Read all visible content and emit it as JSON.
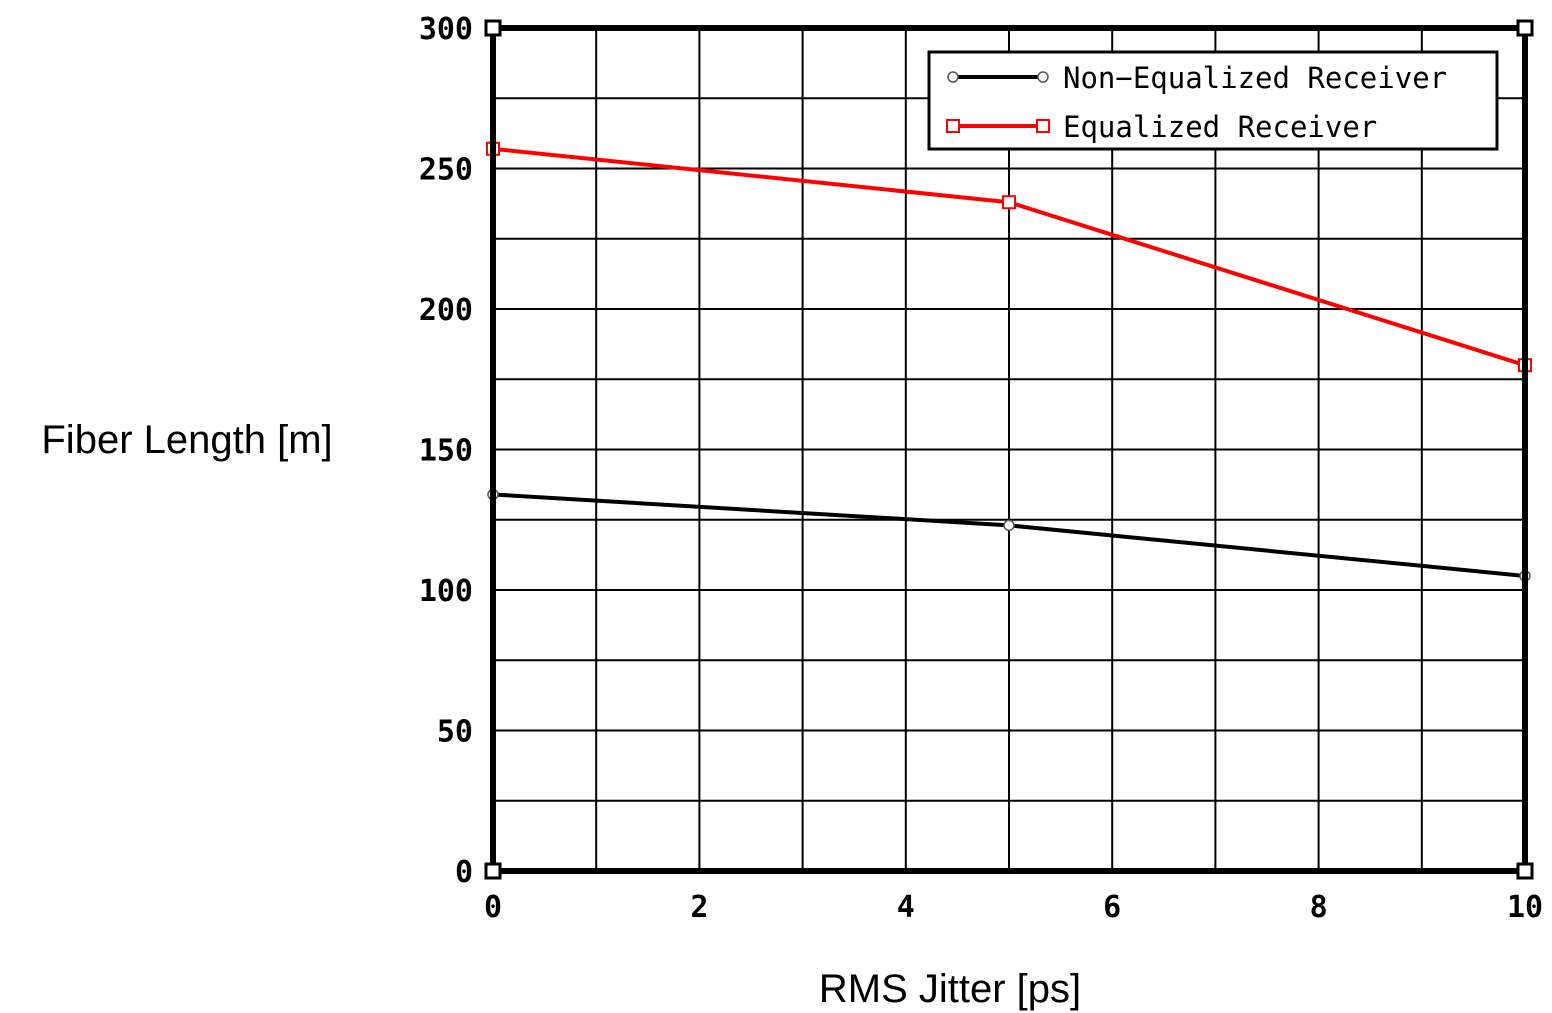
{
  "chart_data": {
    "type": "line",
    "title": "",
    "xlabel": "RMS Jitter [ps]",
    "ylabel": "Fiber Length [m]",
    "xlim": [
      0,
      10
    ],
    "ylim": [
      0,
      300
    ],
    "x_ticks": [
      0,
      2,
      4,
      6,
      8,
      10
    ],
    "y_ticks": [
      0,
      50,
      100,
      150,
      200,
      250,
      300
    ],
    "x_tick_labels": [
      "0",
      "2",
      "4",
      "6",
      "8",
      "10"
    ],
    "y_tick_labels": [
      "0",
      "50",
      "100",
      "150",
      "200",
      "250",
      "300"
    ],
    "x_grid_step": 1,
    "y_grid_step": 25,
    "grid": true,
    "legend_position": "top-right",
    "series": [
      {
        "name": "Non−Equalized Receiver",
        "x": [
          0,
          5,
          10
        ],
        "values": [
          134,
          123,
          105
        ],
        "color": "#000000",
        "marker": "circle"
      },
      {
        "name": "Equalized Receiver",
        "x": [
          0,
          5,
          10
        ],
        "values": [
          257,
          238,
          180
        ],
        "color": "#ff0000",
        "marker": "square"
      }
    ]
  }
}
